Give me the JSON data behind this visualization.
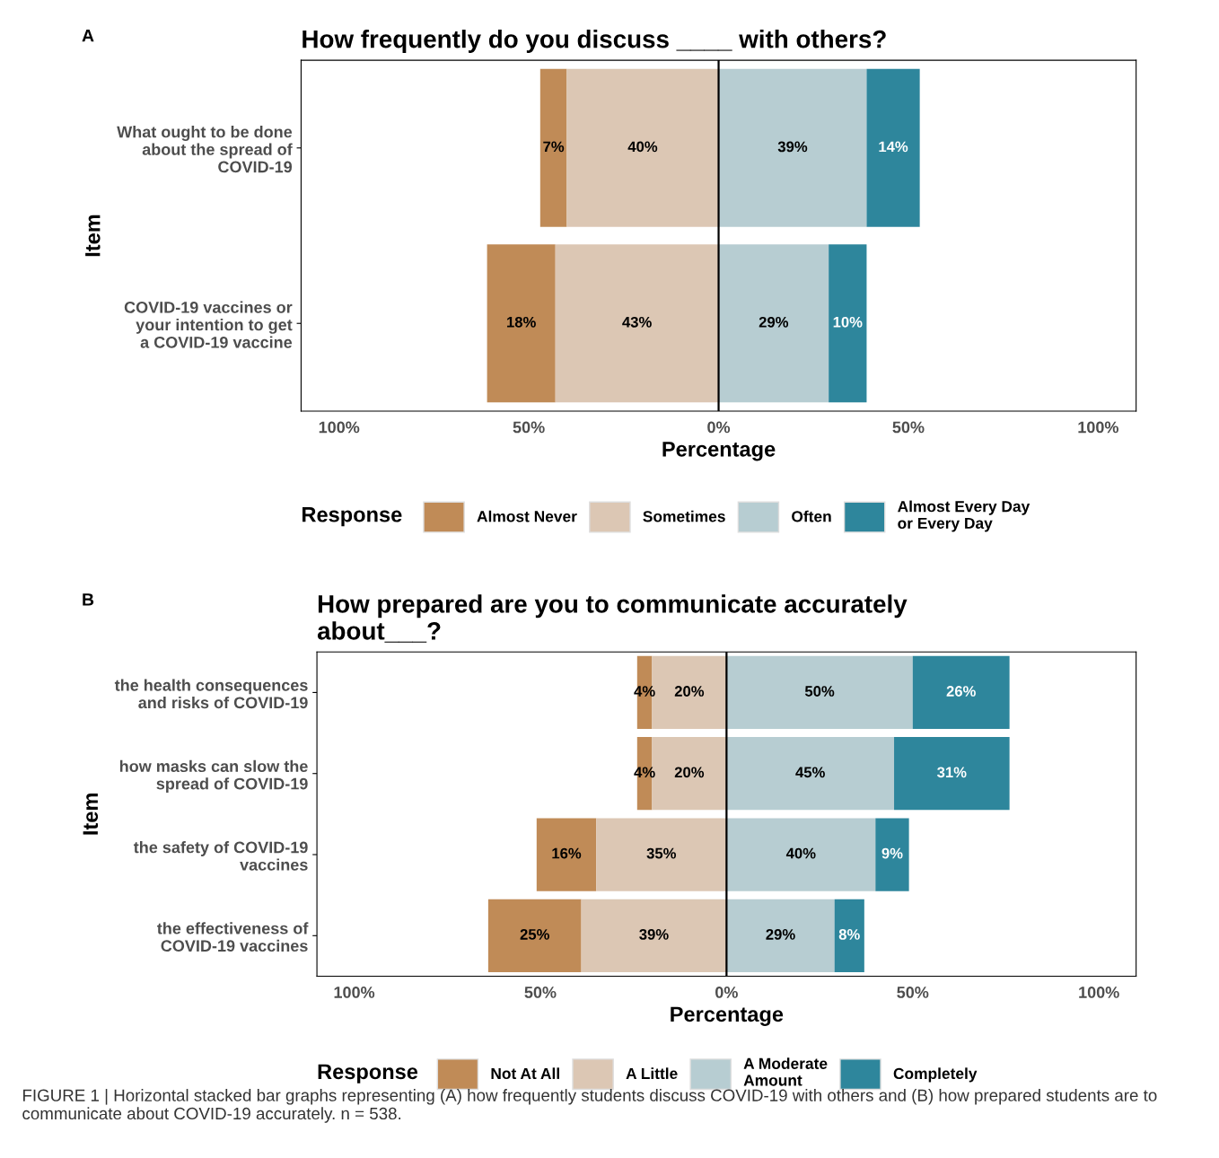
{
  "chart_data": [
    {
      "type": "bar",
      "orientation": "horizontal",
      "title": "How frequently do you discuss ____ with others?",
      "xlabel": "Percentage",
      "ylabel": "Item",
      "legend_title": "Response",
      "legend": "bottom",
      "grid": false,
      "categories": [
        "What ought to be done\nabout the spread of\nCOVID-19",
        "COVID-19 vaccines or\nyour intention to get\na COVID-19 vaccine"
      ],
      "series": [
        {
          "name": "Almost Never",
          "color": "#c08b57",
          "values": [
            7,
            18
          ],
          "base": [
            -47,
            -61
          ],
          "value_labels": [
            "7%",
            "18%"
          ]
        },
        {
          "name": "Sometimes",
          "color": "#dcc7b4",
          "values": [
            40,
            43
          ],
          "base": [
            -40,
            -43
          ],
          "value_labels": [
            "40%",
            "43%"
          ]
        },
        {
          "name": "Often",
          "color": "#b7cdd2",
          "values": [
            39,
            29
          ],
          "base": [
            0,
            0
          ],
          "value_labels": [
            "39%",
            "29%"
          ]
        },
        {
          "name": "Almost Every Day\nor Every Day",
          "color": "#2e869c",
          "values": [
            14,
            10
          ],
          "base": [
            39,
            29
          ],
          "value_labels": [
            "14%",
            "10%"
          ]
        }
      ],
      "xlim": [
        -110,
        110
      ],
      "xticks": [
        {
          "value": -100,
          "label": "100%"
        },
        {
          "value": -50,
          "label": "50%"
        },
        {
          "value": 0,
          "label": "0%"
        },
        {
          "value": 50,
          "label": "50%"
        },
        {
          "value": 100,
          "label": "100%"
        }
      ],
      "ref_lines": [
        {
          "axis": "x",
          "value": 0,
          "color": "#000000"
        }
      ],
      "annotations": [
        "A"
      ]
    },
    {
      "type": "bar",
      "orientation": "horizontal",
      "title": "How prepared are you to communicate accurately\nabout___?",
      "xlabel": "Percentage",
      "ylabel": "Item",
      "legend_title": "Response",
      "legend": "bottom",
      "grid": false,
      "categories": [
        "the health consequences\nand risks of COVID-19",
        "how masks can slow the\nspread of COVID-19",
        "the safety of COVID-19\nvaccines",
        "the effectiveness of\nCOVID-19 vaccines"
      ],
      "series": [
        {
          "name": "Not At All",
          "color": "#c08b57",
          "values": [
            4,
            4,
            16,
            25
          ],
          "base": [
            -24,
            -24,
            -51,
            -64
          ],
          "value_labels": [
            "4%",
            "4%",
            "16%",
            "25%"
          ]
        },
        {
          "name": "A Little",
          "color": "#dcc7b4",
          "values": [
            20,
            20,
            35,
            39
          ],
          "base": [
            -20,
            -20,
            -35,
            -39
          ],
          "value_labels": [
            "20%",
            "20%",
            "35%",
            "39%"
          ]
        },
        {
          "name": "A Moderate\nAmount",
          "color": "#b7cdd2",
          "values": [
            50,
            45,
            40,
            29
          ],
          "base": [
            0,
            0,
            0,
            0
          ],
          "value_labels": [
            "50%",
            "45%",
            "40%",
            "29%"
          ]
        },
        {
          "name": "Completely",
          "color": "#2e869c",
          "values": [
            26,
            31,
            9,
            8
          ],
          "base": [
            50,
            45,
            40,
            29
          ],
          "value_labels": [
            "26%",
            "31%",
            "9%",
            "8%"
          ]
        }
      ],
      "xlim": [
        -110,
        110
      ],
      "xticks": [
        {
          "value": -100,
          "label": "100%"
        },
        {
          "value": -50,
          "label": "50%"
        },
        {
          "value": 0,
          "label": "0%"
        },
        {
          "value": 50,
          "label": "50%"
        },
        {
          "value": 100,
          "label": "100%"
        }
      ],
      "ref_lines": [
        {
          "axis": "x",
          "value": 0,
          "color": "#000000"
        }
      ],
      "annotations": [
        "B",
        "FIGURE 1 | Horizontal stacked bar graphs representing (A) how frequently students discuss COVID-19 with others and (B) how prepared students are to communicate about COVID-19 accurately. n = 538."
      ]
    }
  ]
}
